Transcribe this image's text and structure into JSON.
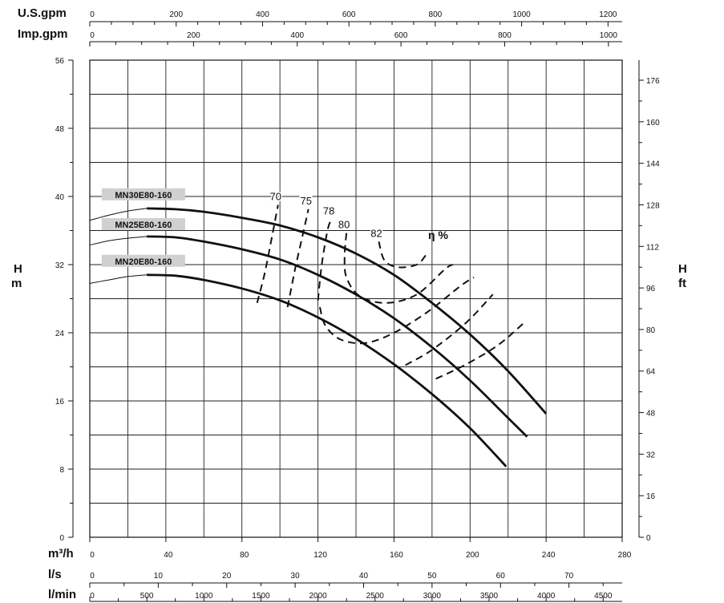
{
  "chart_data": {
    "type": "line",
    "x": {
      "label": "m³/h",
      "range": [
        0,
        280
      ],
      "ticks": [
        0,
        40,
        80,
        120,
        160,
        200,
        240,
        280
      ]
    },
    "y": {
      "label_top": "H",
      "label_bottom": "m",
      "range": [
        0,
        56
      ],
      "ticks": [
        0,
        8,
        16,
        24,
        32,
        40,
        48,
        56
      ]
    },
    "y_right": {
      "label_top": "H",
      "label_bottom": "ft",
      "ticks": [
        0,
        16,
        32,
        48,
        64,
        80,
        96,
        112,
        128,
        144,
        160,
        176
      ],
      "factor": 3.28084
    },
    "x_secondary_top": [
      {
        "label": "U.S.gpm",
        "factor": 4.40287,
        "ticks": [
          0,
          200,
          400,
          600,
          800,
          1000,
          1200
        ]
      },
      {
        "label": "Imp.gpm",
        "factor": 3.66615,
        "ticks": [
          0,
          200,
          400,
          600,
          800,
          1000
        ]
      }
    ],
    "x_secondary_bottom": [
      {
        "label": "l/s",
        "factor": 0.277778,
        "ticks": [
          0,
          10,
          20,
          30,
          40,
          50,
          60,
          70
        ]
      },
      {
        "label": "l/min",
        "factor": 16.6667,
        "ticks": [
          0,
          500,
          1000,
          1500,
          2000,
          2500,
          3000,
          3500,
          4000,
          4500
        ]
      }
    ],
    "grid": true,
    "series": [
      {
        "name": "MN30E80-160",
        "points": [
          [
            0,
            37.2
          ],
          [
            10,
            37.8
          ],
          [
            20,
            38.3
          ],
          [
            30,
            38.6
          ],
          [
            45,
            38.5
          ],
          [
            60,
            38.2
          ],
          [
            80,
            37.5
          ],
          [
            100,
            36.6
          ],
          [
            120,
            35.2
          ],
          [
            140,
            33.3
          ],
          [
            160,
            30.8
          ],
          [
            180,
            27.5
          ],
          [
            200,
            23.8
          ],
          [
            220,
            19.5
          ],
          [
            240,
            14.5
          ]
        ]
      },
      {
        "name": "MN25E80-160",
        "points": [
          [
            0,
            34.3
          ],
          [
            10,
            34.8
          ],
          [
            20,
            35.1
          ],
          [
            30,
            35.3
          ],
          [
            45,
            35.2
          ],
          [
            60,
            34.7
          ],
          [
            80,
            33.8
          ],
          [
            100,
            32.6
          ],
          [
            120,
            30.8
          ],
          [
            140,
            28.5
          ],
          [
            160,
            25.7
          ],
          [
            180,
            22.3
          ],
          [
            200,
            18.4
          ],
          [
            220,
            14.0
          ],
          [
            230,
            11.8
          ]
        ]
      },
      {
        "name": "MN20E80-160",
        "points": [
          [
            0,
            29.8
          ],
          [
            10,
            30.2
          ],
          [
            20,
            30.6
          ],
          [
            30,
            30.8
          ],
          [
            45,
            30.7
          ],
          [
            60,
            30.2
          ],
          [
            80,
            29.2
          ],
          [
            100,
            27.8
          ],
          [
            120,
            25.8
          ],
          [
            140,
            23.3
          ],
          [
            160,
            20.3
          ],
          [
            180,
            16.8
          ],
          [
            200,
            12.8
          ],
          [
            219,
            8.3
          ]
        ]
      }
    ],
    "efficiency_curves": [
      {
        "label": "70",
        "points": [
          [
            88,
            27.5
          ],
          [
            92,
            31.0
          ],
          [
            96,
            35.5
          ],
          [
            99,
            39.0
          ]
        ]
      },
      {
        "label": "75",
        "points": [
          [
            104,
            27.0
          ],
          [
            108,
            31.5
          ],
          [
            112,
            35.5
          ],
          [
            115,
            38.5
          ]
        ]
      },
      {
        "label": "78",
        "points": [
          [
            120,
            27.8
          ],
          [
            122,
            32.0
          ],
          [
            125,
            36.0
          ],
          [
            127,
            37.3
          ]
        ]
      },
      {
        "label": "80",
        "points": [
          [
            135,
            35.7
          ],
          [
            134,
            33.0
          ],
          [
            135,
            30.5
          ],
          [
            142,
            28.3
          ],
          [
            156,
            27.5
          ],
          [
            172,
            28.5
          ],
          [
            187,
            31.5
          ],
          [
            191,
            32.0
          ]
        ]
      },
      {
        "label": "82",
        "points": [
          [
            152,
            34.7
          ],
          [
            155,
            32.5
          ],
          [
            162,
            31.7
          ],
          [
            172,
            32.0
          ],
          [
            177,
            33.2
          ]
        ]
      },
      {
        "label": "",
        "points": [
          [
            121,
            27.0
          ],
          [
            124,
            24.8
          ],
          [
            132,
            23.2
          ],
          [
            145,
            22.8
          ],
          [
            160,
            24.0
          ],
          [
            178,
            26.5
          ],
          [
            195,
            29.5
          ],
          [
            202,
            30.5
          ]
        ]
      },
      {
        "label": "",
        "points": [
          [
            166,
            20.2
          ],
          [
            180,
            22.0
          ],
          [
            198,
            25.2
          ],
          [
            212,
            28.5
          ]
        ]
      },
      {
        "label": "",
        "points": [
          [
            182,
            18.6
          ],
          [
            198,
            20.3
          ],
          [
            215,
            22.6
          ],
          [
            229,
            25.3
          ]
        ]
      }
    ],
    "efficiency_unit_label": "η %",
    "model_labels": [
      {
        "text": "MN30E80-160",
        "at": [
          5,
          40.2
        ]
      },
      {
        "text": "MN25E80-160",
        "at": [
          5,
          36.7
        ]
      },
      {
        "text": "MN20E80-160",
        "at": [
          5,
          32.4
        ]
      }
    ]
  }
}
